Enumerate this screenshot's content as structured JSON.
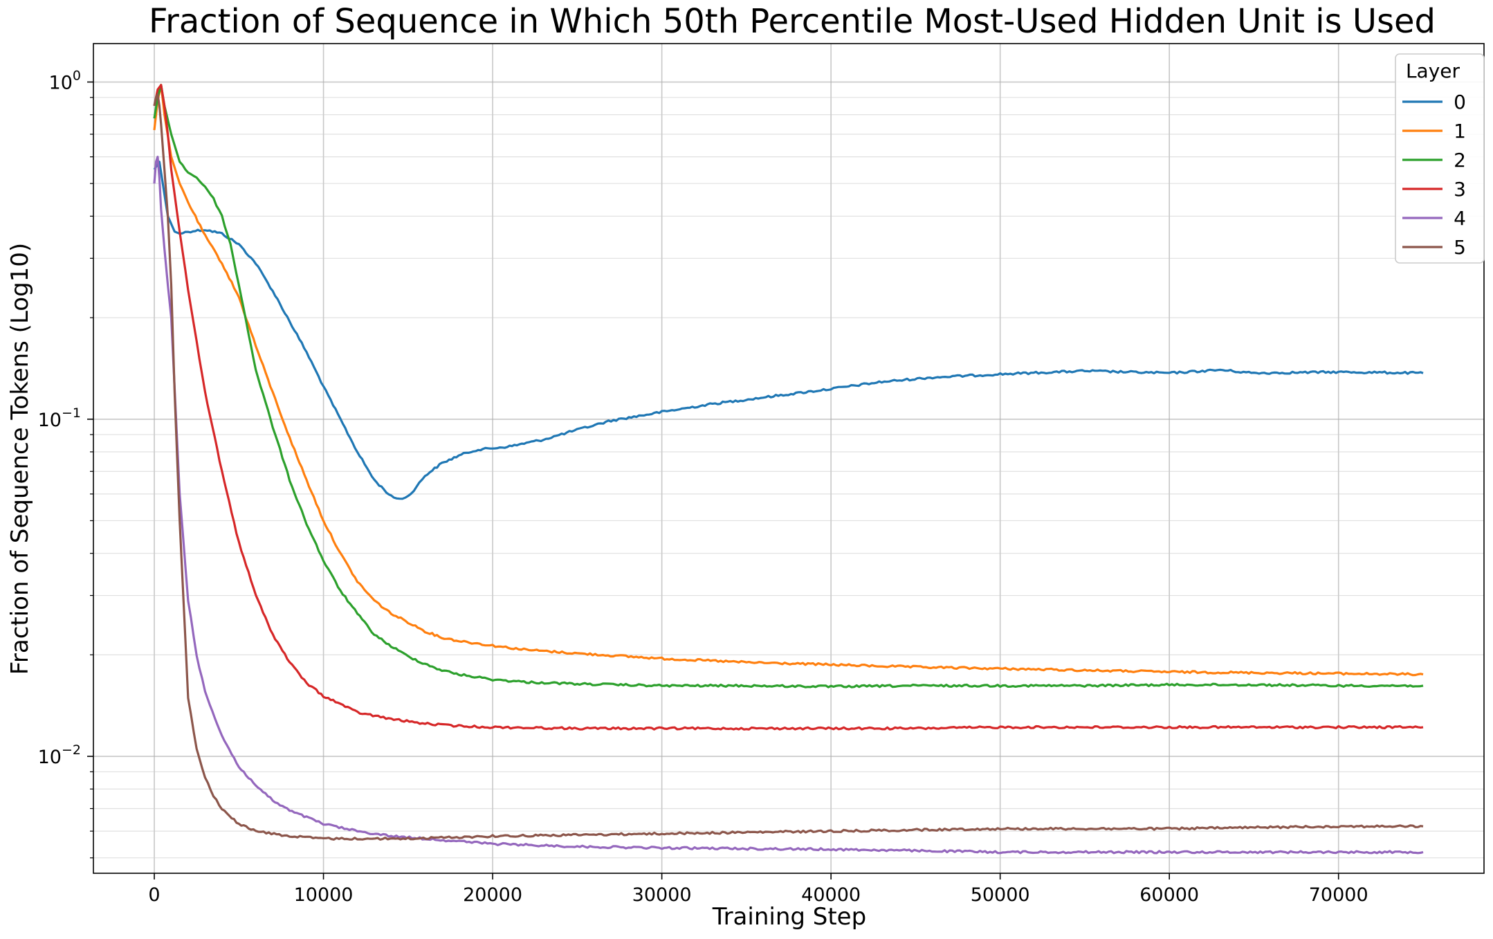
{
  "chart_data": {
    "type": "line",
    "title": "Fraction of Sequence in Which 50th Percentile Most-Used Hidden Unit is Used",
    "xlabel": "Training Step",
    "ylabel": "Fraction of Sequence Tokens (Log10)",
    "yscale": "log",
    "xlim": [
      -3600,
      78600
    ],
    "ylim": [
      0.0045,
      1.3
    ],
    "xticks": [
      0,
      10000,
      20000,
      30000,
      40000,
      50000,
      60000,
      70000
    ],
    "xtick_labels": [
      "0",
      "10000",
      "20000",
      "30000",
      "40000",
      "50000",
      "60000",
      "70000"
    ],
    "yticks": [
      1,
      0.1,
      0.01
    ],
    "ytick_base": "10",
    "ytick_exponents": [
      "0",
      "−1",
      "−2"
    ],
    "grid": "major and minor",
    "legend": {
      "title": "Layer",
      "position": "top-right"
    },
    "series": [
      {
        "name": "0",
        "color": "#1f77b4",
        "x": [
          0,
          300,
          500,
          800,
          1200,
          1500,
          2000,
          3000,
          4000,
          5000,
          6000,
          7000,
          8000,
          9000,
          10000,
          11000,
          12000,
          13000,
          14000,
          14500,
          15000,
          15500,
          16000,
          17000,
          18000,
          19000,
          20000,
          21000,
          22000,
          23000,
          25000,
          27000,
          30000,
          33000,
          36000,
          40000,
          43000,
          46000,
          50000,
          55000,
          60000,
          63000,
          65000,
          70000,
          75000
        ],
        "y": [
          0.55,
          0.58,
          0.5,
          0.4,
          0.36,
          0.355,
          0.36,
          0.365,
          0.355,
          0.33,
          0.29,
          0.24,
          0.195,
          0.158,
          0.125,
          0.1,
          0.08,
          0.066,
          0.059,
          0.058,
          0.059,
          0.063,
          0.068,
          0.074,
          0.078,
          0.081,
          0.082,
          0.083,
          0.085,
          0.087,
          0.093,
          0.099,
          0.105,
          0.111,
          0.116,
          0.123,
          0.129,
          0.133,
          0.136,
          0.139,
          0.137,
          0.14,
          0.137,
          0.138,
          0.137
        ]
      },
      {
        "name": "1",
        "color": "#ff7f0e",
        "x": [
          0,
          200,
          400,
          600,
          1000,
          1500,
          2000,
          3000,
          4000,
          5000,
          6000,
          7000,
          8000,
          9000,
          10000,
          11000,
          12000,
          13000,
          14000,
          15000,
          16000,
          17000,
          18000,
          20000,
          22000,
          25000,
          30000,
          35000,
          40000,
          45000,
          50000,
          55000,
          60000,
          65000,
          70000,
          75000
        ],
        "y": [
          0.72,
          0.88,
          0.98,
          0.8,
          0.6,
          0.5,
          0.44,
          0.35,
          0.29,
          0.23,
          0.165,
          0.12,
          0.088,
          0.066,
          0.05,
          0.04,
          0.033,
          0.029,
          0.0265,
          0.025,
          0.0235,
          0.0225,
          0.022,
          0.0213,
          0.0207,
          0.0202,
          0.0195,
          0.019,
          0.0187,
          0.0184,
          0.0182,
          0.018,
          0.0178,
          0.0177,
          0.0176,
          0.0175
        ]
      },
      {
        "name": "2",
        "color": "#2ca02c",
        "x": [
          0,
          200,
          400,
          600,
          1000,
          1500,
          2000,
          2500,
          3000,
          3500,
          4000,
          4500,
          5000,
          6000,
          7000,
          8000,
          9000,
          10000,
          11000,
          12000,
          13000,
          14000,
          15000,
          16000,
          17000,
          18000,
          20000,
          22000,
          25000,
          30000,
          35000,
          40000,
          45000,
          50000,
          55000,
          60000,
          65000,
          70000,
          75000
        ],
        "y": [
          0.78,
          0.9,
          0.98,
          0.85,
          0.7,
          0.58,
          0.54,
          0.52,
          0.49,
          0.45,
          0.4,
          0.33,
          0.25,
          0.14,
          0.095,
          0.066,
          0.049,
          0.038,
          0.031,
          0.0265,
          0.023,
          0.0212,
          0.0198,
          0.0188,
          0.018,
          0.0175,
          0.0169,
          0.0166,
          0.0164,
          0.0162,
          0.0162,
          0.0161,
          0.0162,
          0.0162,
          0.0162,
          0.0163,
          0.0163,
          0.0162,
          0.0162
        ]
      },
      {
        "name": "3",
        "color": "#d62728",
        "x": [
          0,
          200,
          400,
          600,
          800,
          1000,
          1500,
          2000,
          2500,
          3000,
          4000,
          5000,
          6000,
          7000,
          8000,
          9000,
          10000,
          11000,
          12000,
          14000,
          16000,
          18000,
          20000,
          25000,
          30000,
          35000,
          40000,
          45000,
          50000,
          55000,
          60000,
          65000,
          70000,
          75000
        ],
        "y": [
          0.85,
          0.95,
          0.98,
          0.85,
          0.7,
          0.55,
          0.36,
          0.24,
          0.17,
          0.12,
          0.07,
          0.043,
          0.03,
          0.023,
          0.019,
          0.0165,
          0.0151,
          0.0143,
          0.0135,
          0.0129,
          0.0125,
          0.0123,
          0.0122,
          0.0121,
          0.0121,
          0.0121,
          0.0121,
          0.0121,
          0.0122,
          0.0122,
          0.0122,
          0.0122,
          0.0122,
          0.0122
        ]
      },
      {
        "name": "4",
        "color": "#9467bd",
        "x": [
          0,
          100,
          200,
          300,
          400,
          600,
          800,
          1000,
          1500,
          2000,
          2500,
          3000,
          4000,
          5000,
          6000,
          7000,
          8000,
          9000,
          10000,
          12000,
          14000,
          16000,
          18000,
          20000,
          25000,
          30000,
          40000,
          50000,
          60000,
          70000,
          75000
        ],
        "y": [
          0.5,
          0.58,
          0.6,
          0.52,
          0.42,
          0.32,
          0.25,
          0.2,
          0.06,
          0.029,
          0.02,
          0.0155,
          0.0115,
          0.0093,
          0.0082,
          0.0074,
          0.0069,
          0.0066,
          0.0063,
          0.006,
          0.0058,
          0.0057,
          0.0056,
          0.0055,
          0.0054,
          0.00535,
          0.0053,
          0.0052,
          0.0052,
          0.0052,
          0.0052
        ]
      },
      {
        "name": "5",
        "color": "#8c564b",
        "x": [
          0,
          100,
          200,
          300,
          400,
          600,
          800,
          1000,
          1200,
          1500,
          2000,
          2500,
          3000,
          3500,
          4000,
          5000,
          6000,
          8000,
          10000,
          12000,
          15000,
          20000,
          30000,
          40000,
          50000,
          60000,
          70000,
          75000
        ],
        "y": [
          0.85,
          0.9,
          0.92,
          0.85,
          0.75,
          0.55,
          0.4,
          0.25,
          0.12,
          0.05,
          0.015,
          0.0105,
          0.0087,
          0.0076,
          0.007,
          0.0063,
          0.006,
          0.0058,
          0.0057,
          0.0057,
          0.0057,
          0.0058,
          0.0059,
          0.006,
          0.0061,
          0.0061,
          0.0062,
          0.0062
        ]
      }
    ]
  }
}
